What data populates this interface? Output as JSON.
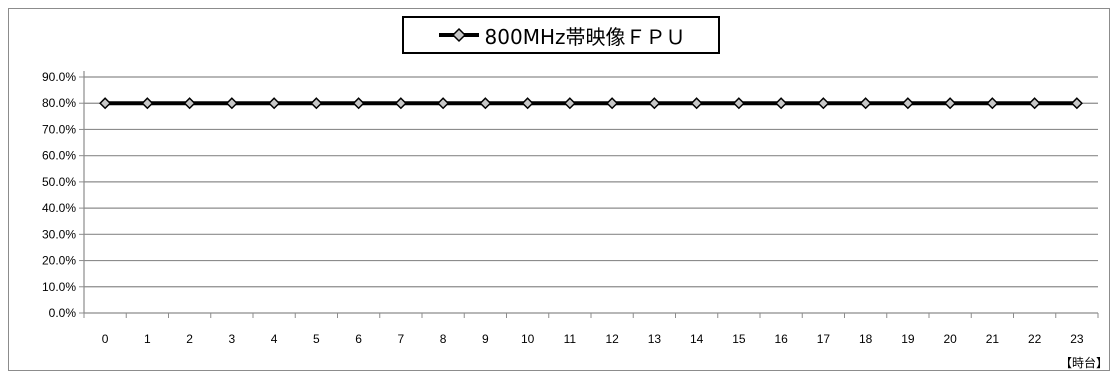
{
  "chart_data": {
    "type": "line",
    "title": "",
    "xlabel": "【時台】",
    "ylabel": "",
    "categories": [
      "0",
      "1",
      "2",
      "3",
      "4",
      "5",
      "6",
      "7",
      "8",
      "9",
      "10",
      "11",
      "12",
      "13",
      "14",
      "15",
      "16",
      "17",
      "18",
      "19",
      "20",
      "21",
      "22",
      "23"
    ],
    "series": [
      {
        "name": "800MHz帯映像ＦＰＵ",
        "values": [
          80,
          80,
          80,
          80,
          80,
          80,
          80,
          80,
          80,
          80,
          80,
          80,
          80,
          80,
          80,
          80,
          80,
          80,
          80,
          80,
          80,
          80,
          80,
          80
        ]
      }
    ],
    "ylim": [
      0,
      90
    ],
    "yticks": [
      "0.0%",
      "10.0%",
      "20.0%",
      "30.0%",
      "40.0%",
      "50.0%",
      "60.0%",
      "70.0%",
      "80.0%",
      "90.0%"
    ],
    "grid": true,
    "legend_position": "top-center",
    "colors": {
      "line": "#000000",
      "marker_fill": "#c8c8c8",
      "grid": "#8c8c8c"
    }
  }
}
